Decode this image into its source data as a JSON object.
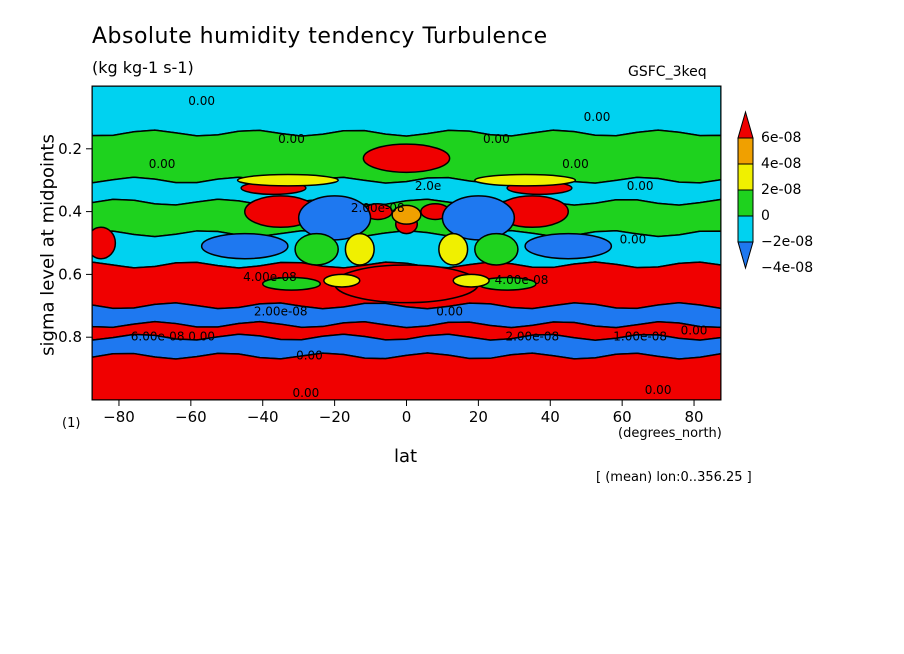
{
  "chart_data": {
    "type": "heatmap",
    "title": "Absolute humidity tendency Turbulence",
    "subtitle": "(kg kg-1 s-1)",
    "run_label": "GSFC_3keq",
    "xlabel": "lat",
    "x_units": "(degrees_north)",
    "ylabel": "sigma level at midpoints",
    "panel_label": "(1)",
    "footnote": "[ (mean) lon:0..356.25 ]",
    "xlim": [
      -87.5,
      87.5
    ],
    "ylim": [
      0.0,
      1.0
    ],
    "y_inverted": true,
    "x_ticks": [
      -80,
      -60,
      -40,
      -20,
      0,
      20,
      40,
      60,
      80
    ],
    "x_tick_labels": [
      "−80",
      "−60",
      "−40",
      "−20",
      "0",
      "20",
      "40",
      "60",
      "80"
    ],
    "y_ticks": [
      0.2,
      0.4,
      0.6,
      0.8
    ],
    "y_tick_labels": [
      "0.2",
      "0.4",
      "0.6",
      "0.8"
    ],
    "colorbar": {
      "colors": [
        "#1e78f0",
        "#00d2f0",
        "#1ed21e",
        "#f0f000",
        "#f0a000",
        "#f00000"
      ],
      "tick_labels": [
        "−4e-08",
        "−2e-08",
        "0",
        "2e-08",
        "4e-08",
        "6e-08"
      ]
    },
    "colors": {
      "blue": "#1e78f0",
      "cyan": "#00d2f0",
      "green": "#1ed21e",
      "yellow": "#f0f000",
      "orange": "#f0a000",
      "red": "#f00000"
    },
    "bands": [
      {
        "y": [
          0.0,
          0.15
        ],
        "class": "cyan"
      },
      {
        "y": [
          0.15,
          0.3
        ],
        "class": "green"
      },
      {
        "y": [
          0.3,
          0.37
        ],
        "class": "cyan"
      },
      {
        "y": [
          0.37,
          0.47
        ],
        "class": "green"
      },
      {
        "y": [
          0.47,
          0.57
        ],
        "class": "cyan"
      },
      {
        "y": [
          0.57,
          0.7
        ],
        "class": "red"
      },
      {
        "y": [
          0.7,
          0.76
        ],
        "class": "blue"
      },
      {
        "y": [
          0.76,
          0.8
        ],
        "class": "red"
      },
      {
        "y": [
          0.8,
          0.86
        ],
        "class": "blue"
      },
      {
        "y": [
          0.86,
          1.0
        ],
        "class": "red"
      }
    ],
    "blobs": [
      {
        "x": 0,
        "y": 0.23,
        "rx": 12,
        "ry": 0.045,
        "class": "red"
      },
      {
        "x": -35,
        "y": 0.4,
        "rx": 10,
        "ry": 0.05,
        "class": "red"
      },
      {
        "x": 35,
        "y": 0.4,
        "rx": 10,
        "ry": 0.05,
        "class": "red"
      },
      {
        "x": -37,
        "y": 0.325,
        "rx": 9,
        "ry": 0.02,
        "class": "red"
      },
      {
        "x": 37,
        "y": 0.325,
        "rx": 9,
        "ry": 0.02,
        "class": "red"
      },
      {
        "x": 0,
        "y": 0.63,
        "rx": 20,
        "ry": 0.06,
        "class": "red"
      },
      {
        "x": -8,
        "y": 0.4,
        "rx": 4,
        "ry": 0.025,
        "class": "red"
      },
      {
        "x": 8,
        "y": 0.4,
        "rx": 4,
        "ry": 0.025,
        "class": "red"
      },
      {
        "x": 0,
        "y": 0.44,
        "rx": 3,
        "ry": 0.03,
        "class": "red"
      },
      {
        "x": 0,
        "y": 0.41,
        "rx": 4,
        "ry": 0.03,
        "class": "orange"
      },
      {
        "x": -20,
        "y": 0.42,
        "rx": 10,
        "ry": 0.07,
        "class": "blue"
      },
      {
        "x": 20,
        "y": 0.42,
        "rx": 10,
        "ry": 0.07,
        "class": "blue"
      },
      {
        "x": -25,
        "y": 0.52,
        "rx": 6,
        "ry": 0.05,
        "class": "green"
      },
      {
        "x": 25,
        "y": 0.52,
        "rx": 6,
        "ry": 0.05,
        "class": "green"
      },
      {
        "x": -13,
        "y": 0.52,
        "rx": 4,
        "ry": 0.05,
        "class": "yellow"
      },
      {
        "x": 13,
        "y": 0.52,
        "rx": 4,
        "ry": 0.05,
        "class": "yellow"
      },
      {
        "x": -45,
        "y": 0.51,
        "rx": 12,
        "ry": 0.04,
        "class": "blue"
      },
      {
        "x": 45,
        "y": 0.51,
        "rx": 12,
        "ry": 0.04,
        "class": "blue"
      },
      {
        "x": -32,
        "y": 0.63,
        "rx": 8,
        "ry": 0.02,
        "class": "green"
      },
      {
        "x": 28,
        "y": 0.63,
        "rx": 8,
        "ry": 0.02,
        "class": "green"
      },
      {
        "x": -18,
        "y": 0.62,
        "rx": 5,
        "ry": 0.02,
        "class": "yellow"
      },
      {
        "x": 18,
        "y": 0.62,
        "rx": 5,
        "ry": 0.02,
        "class": "yellow"
      },
      {
        "x": -33,
        "y": 0.3,
        "rx": 14,
        "ry": 0.018,
        "class": "yellow"
      },
      {
        "x": 33,
        "y": 0.3,
        "rx": 14,
        "ry": 0.018,
        "class": "yellow"
      },
      {
        "x": -85,
        "y": 0.5,
        "rx": 4,
        "ry": 0.05,
        "class": "red"
      }
    ],
    "contour_labels": [
      {
        "x": -57,
        "y": 0.05,
        "text": "0.00"
      },
      {
        "x": 53,
        "y": 0.1,
        "text": "0.00"
      },
      {
        "x": -32,
        "y": 0.17,
        "text": "0.00"
      },
      {
        "x": 25,
        "y": 0.17,
        "text": "0.00"
      },
      {
        "x": -68,
        "y": 0.25,
        "text": "0.00"
      },
      {
        "x": 47,
        "y": 0.25,
        "text": "0.00"
      },
      {
        "x": 65,
        "y": 0.32,
        "text": "0.00"
      },
      {
        "x": 6,
        "y": 0.32,
        "text": "2.0e"
      },
      {
        "x": -8,
        "y": 0.39,
        "text": "2.00e-08"
      },
      {
        "x": 63,
        "y": 0.49,
        "text": "0.00"
      },
      {
        "x": -38,
        "y": 0.61,
        "text": "4.00e-08"
      },
      {
        "x": 32,
        "y": 0.62,
        "text": "4.00e-08"
      },
      {
        "x": -35,
        "y": 0.72,
        "text": "2.00e-08"
      },
      {
        "x": 12,
        "y": 0.72,
        "text": "0.00"
      },
      {
        "x": -65,
        "y": 0.8,
        "text": "6.00e-08 0.00"
      },
      {
        "x": 35,
        "y": 0.8,
        "text": "2.00e-08"
      },
      {
        "x": 65,
        "y": 0.8,
        "text": "1.00e-08"
      },
      {
        "x": 80,
        "y": 0.78,
        "text": "0.00"
      },
      {
        "x": -27,
        "y": 0.86,
        "text": "0.00"
      },
      {
        "x": 70,
        "y": 0.97,
        "text": "0.00"
      },
      {
        "x": -28,
        "y": 0.98,
        "text": "0.00"
      }
    ],
    "grid": false
  }
}
